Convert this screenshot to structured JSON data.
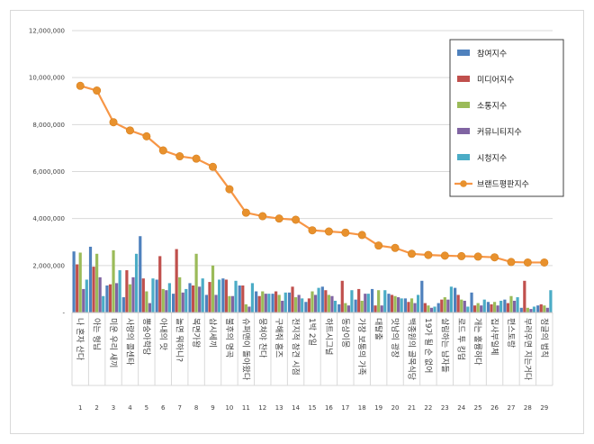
{
  "chart_data": {
    "type": "bar",
    "title": "",
    "xlabel": "",
    "ylabel": "",
    "ylim": [
      0,
      12000000
    ],
    "yticks": [
      "-",
      "2,000,000",
      "4,000,000",
      "6,000,000",
      "8,000,000",
      "10,000,000",
      "12,000,000"
    ],
    "grid": true,
    "legend_position": "top-right",
    "categories": [
      "나 혼자 산다",
      "아는 형님",
      "미운 우리 새끼",
      "사랑의 콜센타",
      "뽕숭아학당",
      "아내의 맛",
      "놀면 뭐하니?",
      "복면가왕",
      "삼시세끼",
      "불후의 명곡",
      "슈퍼맨이 돌아왔다",
      "뭉쳐야 찬다",
      "구해줘 홈즈",
      "전지적 참견 시점",
      "1박 2일",
      "하트시그널",
      "동상이몽",
      "가장 보통의 가족",
      "대탈출",
      "맛남의 광장",
      "백종원의 골목식당",
      "19가 될 순 없어",
      "살림하는 남자들",
      "로드 투 킹덤",
      "개는 훌륭하다",
      "집사부일체",
      "편스토랑",
      "부러우면 지는거다",
      "정글의 법칙"
    ],
    "numbers": [
      "1",
      "2",
      "3",
      "4",
      "5",
      "6",
      "7",
      "8",
      "9",
      "10",
      "11",
      "12",
      "13",
      "14",
      "15",
      "16",
      "17",
      "18",
      "19",
      "20",
      "21",
      "22",
      "23",
      "24",
      "25",
      "26",
      "27",
      "28",
      "29"
    ],
    "series": [
      {
        "name": "참여지수",
        "type": "bar",
        "color": "#4f81bd",
        "values": [
          2600000,
          2800000,
          1150000,
          650000,
          3250000,
          1400000,
          800000,
          1250000,
          750000,
          1450000,
          1150000,
          900000,
          800000,
          850000,
          450000,
          1100000,
          350000,
          550000,
          1000000,
          800000,
          600000,
          1350000,
          400000,
          1050000,
          850000,
          450000,
          550000,
          200000,
          300000
        ]
      },
      {
        "name": "미디어지수",
        "type": "bar",
        "color": "#c0504d",
        "values": [
          2050000,
          1950000,
          1200000,
          1800000,
          1450000,
          2400000,
          2700000,
          1150000,
          1300000,
          1400000,
          1150000,
          700000,
          900000,
          1100000,
          600000,
          950000,
          1350000,
          1000000,
          300000,
          750000,
          450000,
          400000,
          550000,
          750000,
          300000,
          350000,
          400000,
          1350000,
          350000
        ]
      },
      {
        "name": "소통지수",
        "type": "bar",
        "color": "#9bbb59",
        "values": [
          2550000,
          2500000,
          2650000,
          1200000,
          900000,
          1000000,
          1500000,
          2500000,
          2000000,
          700000,
          350000,
          900000,
          750000,
          650000,
          900000,
          750000,
          400000,
          500000,
          950000,
          700000,
          600000,
          300000,
          650000,
          550000,
          400000,
          450000,
          700000,
          200000,
          300000
        ]
      },
      {
        "name": "커뮤니티지수",
        "type": "bar",
        "color": "#8064a2",
        "values": [
          1000000,
          1500000,
          1250000,
          1500000,
          400000,
          950000,
          850000,
          1100000,
          750000,
          700000,
          250000,
          800000,
          500000,
          750000,
          750000,
          700000,
          300000,
          800000,
          300000,
          650000,
          400000,
          200000,
          550000,
          500000,
          300000,
          300000,
          500000,
          150000,
          200000
        ]
      },
      {
        "name": "시청지수",
        "type": "bar",
        "color": "#4bacc6",
        "values": [
          1400000,
          700000,
          1800000,
          2500000,
          1450000,
          1250000,
          1000000,
          1450000,
          1400000,
          1350000,
          1250000,
          800000,
          850000,
          600000,
          1050000,
          500000,
          950000,
          800000,
          950000,
          600000,
          750000,
          250000,
          1100000,
          250000,
          550000,
          500000,
          650000,
          250000,
          950000
        ]
      },
      {
        "name": "브랜드평판지수",
        "type": "line",
        "color": "#f79646",
        "marker_color": "#e8912d",
        "values": [
          9650000,
          9450000,
          8100000,
          7750000,
          7500000,
          6900000,
          6650000,
          6550000,
          6200000,
          5250000,
          4250000,
          4100000,
          4000000,
          3950000,
          3500000,
          3450000,
          3400000,
          3300000,
          2850000,
          2750000,
          2500000,
          2450000,
          2420000,
          2400000,
          2380000,
          2350000,
          2150000,
          2130000,
          2130000
        ]
      }
    ]
  }
}
